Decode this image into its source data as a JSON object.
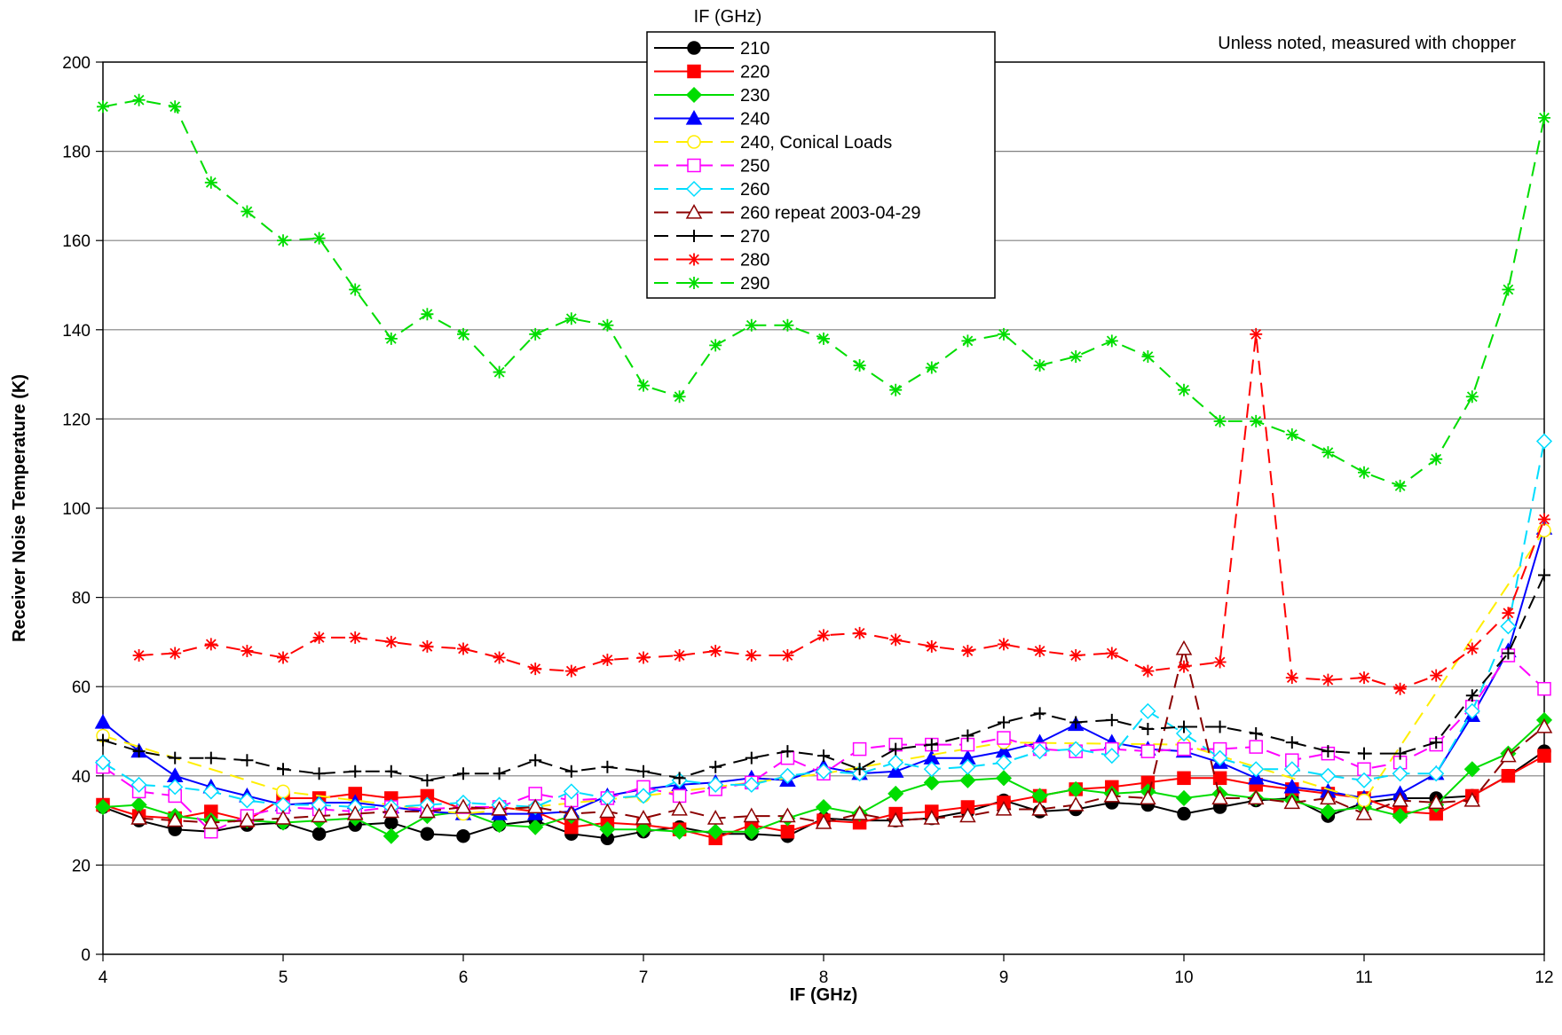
{
  "chart_data": {
    "type": "line",
    "legend_title": "IF (GHz)",
    "note": "Unless noted, measured with chopper",
    "xlabel": "IF (GHz)",
    "ylabel": "Receiver Noise Temperature (K)",
    "xlim": [
      4,
      12
    ],
    "ylim": [
      0,
      200
    ],
    "xticks": [
      "4",
      "5",
      "6",
      "7",
      "8",
      "9",
      "10",
      "11",
      "12"
    ],
    "yticks": [
      "0",
      "20",
      "40",
      "60",
      "80",
      "100",
      "120",
      "140",
      "160",
      "180",
      "200"
    ],
    "grid": "horizontal",
    "legend_position": "top-center",
    "x": [
      4.0,
      4.2,
      4.4,
      4.6,
      4.8,
      5.0,
      5.2,
      5.4,
      5.6,
      5.8,
      6.0,
      6.2,
      6.4,
      6.6,
      6.8,
      7.0,
      7.2,
      7.4,
      7.6,
      7.8,
      8.0,
      8.2,
      8.4,
      8.6,
      8.8,
      9.0,
      9.2,
      9.4,
      9.6,
      9.8,
      10.0,
      10.2,
      10.4,
      10.6,
      10.8,
      11.0,
      11.2,
      11.4,
      11.6,
      11.8,
      12.0
    ],
    "series": [
      {
        "name": "210",
        "color": "#000000",
        "dash": "solid",
        "marker": "circle",
        "fill": true,
        "values": [
          33,
          30,
          28,
          27.5,
          29,
          29.5,
          27,
          29,
          29.5,
          27,
          26.5,
          29,
          30,
          27,
          26,
          27.5,
          28.5,
          27,
          27,
          26.5,
          30.5,
          30,
          30,
          30.5,
          32,
          34.5,
          32,
          32.5,
          34,
          33.5,
          31.5,
          33,
          34.5,
          35,
          31,
          34,
          35,
          35,
          35.5,
          40,
          45.5
        ]
      },
      {
        "name": "220",
        "color": "#ff0000",
        "dash": "solid",
        "marker": "square",
        "fill": true,
        "values": [
          33.5,
          31,
          30.5,
          32,
          30,
          35,
          35,
          36,
          35,
          35.5,
          32.5,
          33,
          32,
          28.5,
          29.5,
          29,
          28,
          26,
          29,
          27.5,
          30,
          29.5,
          31.5,
          32,
          33,
          34,
          35.5,
          37,
          37.5,
          38.5,
          39.5,
          39.5,
          38,
          37,
          36,
          35,
          32,
          31.5,
          35.5,
          40,
          44.5
        ]
      },
      {
        "name": "230",
        "color": "#00dd00",
        "dash": "solid",
        "marker": "diamond",
        "fill": true,
        "values": [
          33,
          33.5,
          31,
          30,
          30,
          29.5,
          30,
          30.5,
          26.5,
          31,
          32,
          29,
          28.5,
          31,
          28,
          28,
          27.5,
          27.5,
          27.5,
          30.5,
          33,
          31.5,
          36,
          38.5,
          39,
          39.5,
          35.5,
          37,
          36,
          36.5,
          35,
          36,
          35,
          34.5,
          32,
          33,
          31,
          33.5,
          41.5,
          45,
          52.5
        ]
      },
      {
        "name": "240",
        "color": "#0000ff",
        "dash": "solid",
        "marker": "triangle",
        "fill": true,
        "values": [
          52,
          45.5,
          40,
          37.5,
          35.5,
          33.5,
          34,
          34,
          33,
          32,
          31.5,
          31.5,
          31.5,
          32,
          35.5,
          37,
          38,
          38.5,
          39.5,
          39,
          42,
          40.5,
          41,
          44,
          44,
          45.5,
          47.5,
          51.5,
          47.5,
          46,
          45.5,
          43,
          39.5,
          37.5,
          36.5,
          35,
          36,
          40.5,
          53.5,
          68,
          95.5
        ]
      },
      {
        "name": "240, Conical Loads",
        "color": "#ffee00",
        "dash": "dashed",
        "marker": "circle",
        "fill": false,
        "values": [
          49,
          null,
          null,
          null,
          null,
          36.5,
          null,
          null,
          null,
          null,
          31.5,
          null,
          null,
          null,
          null,
          35.5,
          null,
          null,
          null,
          null,
          40.5,
          null,
          null,
          null,
          null,
          47.5,
          null,
          null,
          null,
          null,
          47,
          null,
          null,
          null,
          null,
          34.5,
          null,
          null,
          null,
          null,
          95
        ]
      },
      {
        "name": "250",
        "color": "#ff00ff",
        "dash": "dashed",
        "marker": "square",
        "fill": false,
        "values": [
          42,
          36.5,
          35.5,
          27.5,
          31,
          33,
          32.5,
          32,
          33,
          32.5,
          33,
          33,
          36,
          34.5,
          35,
          37.5,
          35.5,
          37,
          38.5,
          44,
          40.5,
          46,
          47,
          47,
          47,
          48.5,
          46,
          45.5,
          46,
          45.5,
          46,
          46,
          46.5,
          43.5,
          45,
          41.5,
          43,
          47,
          55.5,
          67,
          59.5
        ]
      },
      {
        "name": "260",
        "color": "#00ddff",
        "dash": "dashed",
        "marker": "diamond",
        "fill": false,
        "values": [
          43,
          38,
          37.5,
          36.5,
          34.5,
          33.5,
          33.5,
          33,
          33,
          33.5,
          34,
          33.5,
          33,
          36.5,
          35,
          35.5,
          39,
          38,
          38,
          40,
          41,
          40.5,
          43,
          41.5,
          42,
          43,
          45.5,
          46,
          44.5,
          54.5,
          49.5,
          44,
          41.5,
          41.5,
          40,
          39,
          40.5,
          40.5,
          54.5,
          73.5,
          115
        ]
      },
      {
        "name": "260 repeat 2003-04-29",
        "color": "#8b0000",
        "dash": "dashed",
        "marker": "triangle",
        "fill": false,
        "values": [
          null,
          30.5,
          30,
          29.5,
          30,
          30.5,
          31,
          31.5,
          32,
          32,
          33,
          32.5,
          33,
          31.5,
          32,
          30.5,
          32.5,
          30.5,
          31,
          31,
          29.5,
          31.5,
          30,
          30.5,
          31,
          32.5,
          32.5,
          33.5,
          35.5,
          35,
          68.5,
          35,
          35,
          34,
          35,
          31.5,
          34.5,
          34,
          34.5,
          44.5,
          51
        ]
      },
      {
        "name": "270",
        "color": "#000000",
        "dash": "dashed",
        "marker": "plus",
        "fill": false,
        "values": [
          48,
          45.5,
          44,
          44,
          43.5,
          41.5,
          40.5,
          41,
          41,
          39,
          40.5,
          40.5,
          43.5,
          41,
          42,
          41,
          39.5,
          42,
          44,
          45.5,
          44.5,
          41.5,
          46,
          47,
          49,
          52,
          54,
          52,
          52.5,
          50.5,
          51,
          51,
          49.5,
          47.5,
          45.5,
          45,
          45,
          47.5,
          58,
          67.5,
          85
        ]
      },
      {
        "name": "280",
        "color": "#ff0000",
        "dash": "dashed",
        "marker": "star",
        "fill": false,
        "values": [
          null,
          67,
          67.5,
          69.5,
          68,
          66.5,
          71,
          71,
          70,
          69,
          68.5,
          66.5,
          64,
          63.5,
          66,
          66.5,
          67,
          68,
          67,
          67,
          71.5,
          72,
          70.5,
          69,
          68,
          69.5,
          68,
          67,
          67.5,
          63.5,
          64.5,
          65.5,
          139,
          62,
          61.5,
          62,
          59.5,
          62.5,
          68.5,
          76.5,
          97.5
        ]
      },
      {
        "name": "290",
        "color": "#00dd00",
        "dash": "dashed",
        "marker": "star",
        "fill": false,
        "values": [
          190,
          191.5,
          190,
          173,
          166.5,
          160,
          160.5,
          149,
          138,
          143.5,
          139,
          130.5,
          139,
          142.5,
          141,
          127.5,
          125,
          136.5,
          141,
          141,
          138,
          132,
          126.5,
          131.5,
          137.5,
          139,
          132,
          134,
          137.5,
          134,
          126.5,
          119.5,
          119.5,
          116.5,
          112.5,
          108,
          105,
          111,
          125,
          149,
          187.5
        ]
      }
    ]
  }
}
